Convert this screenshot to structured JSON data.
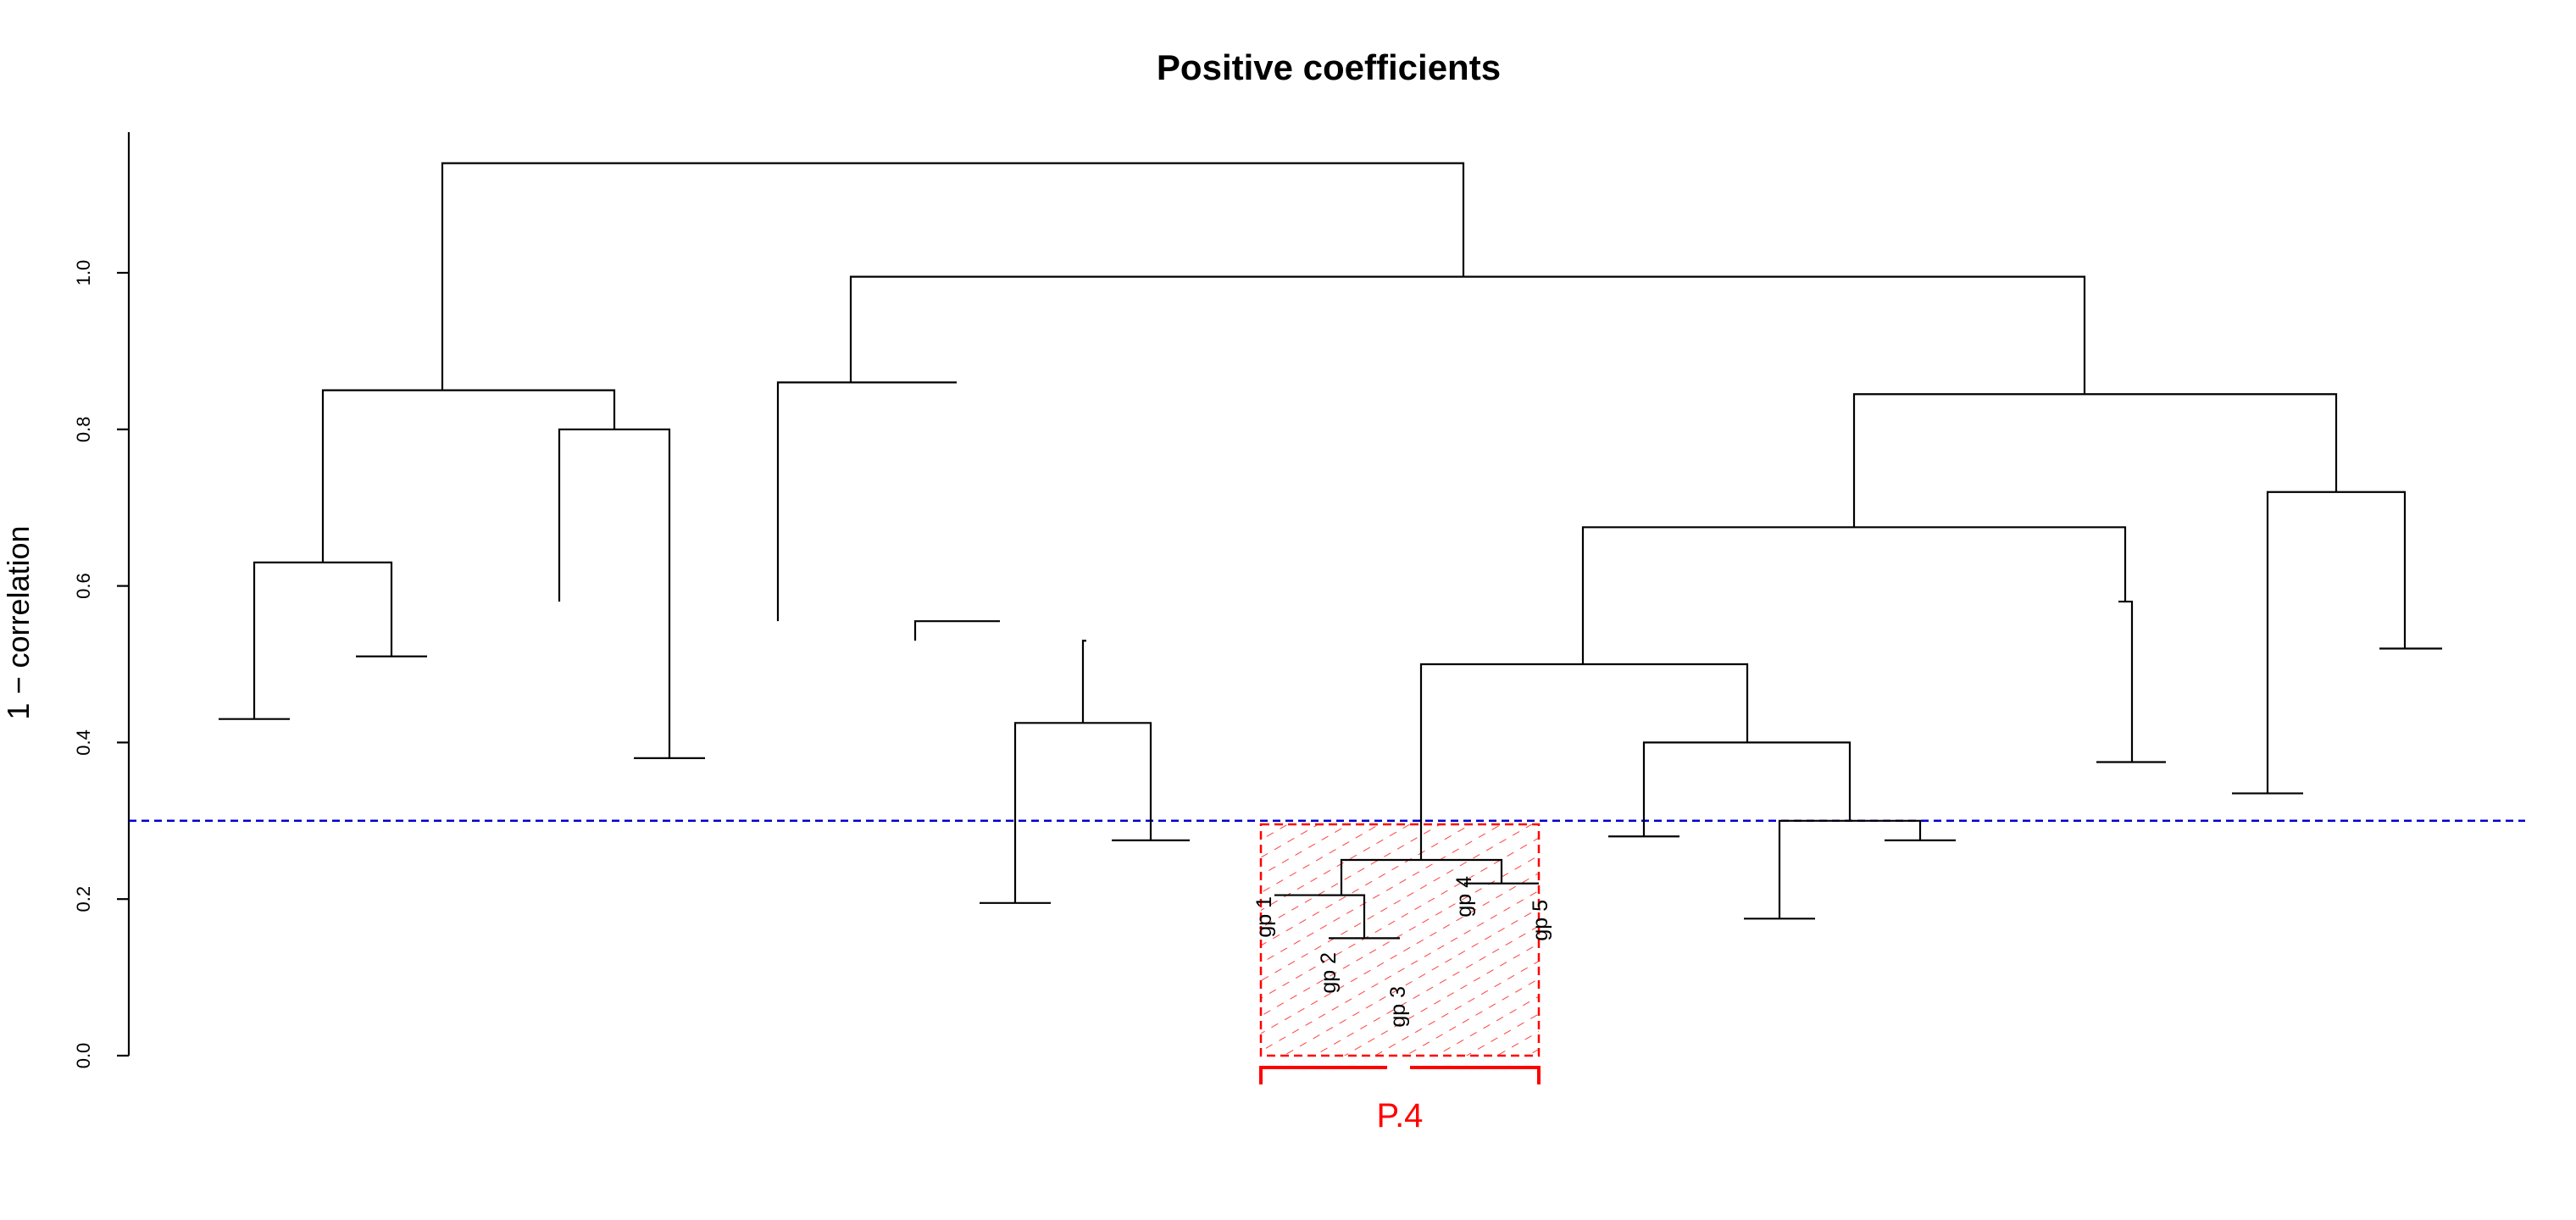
{
  "chart_data": {
    "type": "dendrogram",
    "title": "Positive coefficients",
    "ylabel": "1 − correlation",
    "ylim": [
      0,
      1.18
    ],
    "yticks": [
      0.0,
      0.2,
      0.4,
      0.6,
      0.8,
      1.0
    ],
    "ytick_labels": [
      "0.0",
      "0.2",
      "0.4",
      "0.6",
      "0.8",
      "1.0"
    ],
    "cut_height": 0.3,
    "cut_line_color": "#0000cc",
    "highlight": {
      "label": "P.4",
      "color": "#ff0000",
      "leaves": [
        "gp 1",
        "gp 2",
        "gp 3",
        "gp 4",
        "gp 5"
      ]
    },
    "leaf_heights": [
      0.43,
      0.51,
      0.38,
      0.195,
      0.275,
      0.15,
      0.205,
      0.22,
      0.28,
      0.175,
      0.275,
      0.375,
      0.335,
      0.52
    ],
    "merges": [
      {
        "left": 0.43,
        "right": 0.51,
        "height": 0.63
      },
      {
        "left": 0.38,
        "right": 0.58,
        "height": 0.8
      },
      {
        "left": 0.63,
        "right": 0.8,
        "height": 0.85
      },
      {
        "left": 0.195,
        "right": 0.275,
        "height": 0.425
      },
      {
        "left": 0.425,
        "right": 0.53,
        "height": 0.53
      },
      {
        "left": 0.53,
        "right": 0.555,
        "height": 0.555
      },
      {
        "left": 0.555,
        "right": 0.86,
        "height": 0.86
      },
      {
        "left": 0.15,
        "right": 0.205,
        "height": 0.205
      },
      {
        "left": 0.205,
        "right": 0.22,
        "height": 0.25
      },
      {
        "left": 0.175,
        "right": 0.275,
        "height": 0.3
      },
      {
        "left": 0.28,
        "right": 0.3,
        "height": 0.4
      },
      {
        "left": 0.25,
        "right": 0.4,
        "height": 0.5
      },
      {
        "left": 0.375,
        "right": 0.58,
        "height": 0.58
      },
      {
        "left": 0.5,
        "right": 0.58,
        "height": 0.675
      },
      {
        "left": 0.335,
        "right": 0.52,
        "height": 0.72
      },
      {
        "left": 0.675,
        "right": 0.72,
        "height": 0.845
      },
      {
        "left": 0.86,
        "right": 0.845,
        "height": 0.995
      },
      {
        "left": 0.85,
        "right": 0.995,
        "height": 1.14
      }
    ]
  }
}
